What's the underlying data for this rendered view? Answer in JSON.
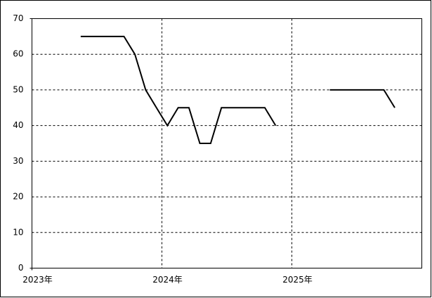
{
  "chart_data": {
    "type": "line",
    "x": [
      2023.375,
      2023.458,
      2023.542,
      2023.625,
      2023.708,
      2023.792,
      2023.875,
      2023.958,
      2024.042,
      2024.125,
      2024.208,
      2024.292,
      2024.375,
      2024.458,
      2024.542,
      2024.625,
      2024.708,
      2024.792,
      2024.875,
      2024.958,
      2025.042,
      2025.125,
      2025.208,
      2025.292,
      2025.375,
      2025.458,
      2025.542,
      2025.625,
      2025.708,
      2025.792
    ],
    "series": [
      {
        "color": "#000000",
        "values": [
          65,
          65,
          65,
          65,
          65,
          60,
          50,
          45,
          40,
          45,
          45,
          35,
          35,
          45,
          45,
          45,
          45,
          45,
          40,
          null,
          null,
          null,
          null,
          50,
          50,
          50,
          50,
          50,
          50,
          45
        ]
      }
    ],
    "xlim": [
      2023,
      2026
    ],
    "xticks": [
      {
        "value": 2023,
        "label": "2023年"
      },
      {
        "value": 2024,
        "label": "2024年"
      },
      {
        "value": 2025,
        "label": "2025年"
      }
    ],
    "ylim": [
      0,
      70
    ],
    "yticks": [
      0,
      10,
      20,
      30,
      40,
      50,
      60,
      70
    ],
    "grid": true
  }
}
